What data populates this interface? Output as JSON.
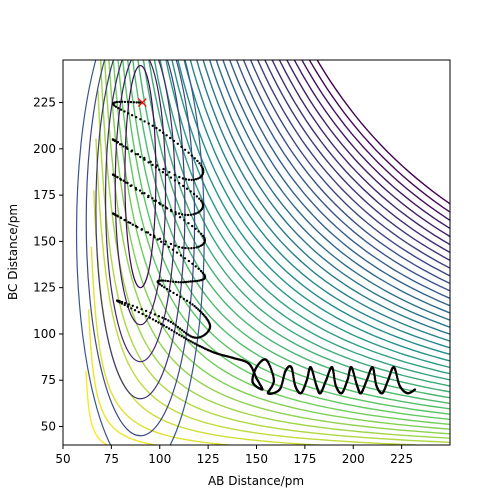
{
  "chart_data": {
    "type": "contour",
    "title": "",
    "xlabel": "AB Distance/pm",
    "ylabel": "BC Distance/pm",
    "xlim": [
      50,
      250
    ],
    "ylim": [
      40,
      248
    ],
    "x_ticks": [
      "50",
      "75",
      "100",
      "125",
      "150",
      "175",
      "200",
      "225"
    ],
    "y_ticks": [
      "50",
      "75",
      "100",
      "125",
      "150",
      "175",
      "200",
      "225"
    ],
    "x_tick_values": [
      50,
      75,
      100,
      125,
      150,
      175,
      200,
      225
    ],
    "y_tick_values": [
      50,
      75,
      100,
      125,
      150,
      175,
      200,
      225
    ],
    "grid": false,
    "legend": "none",
    "colormap": "viridis",
    "colormap_colors": [
      "#440154",
      "#3b528b",
      "#21918c",
      "#5ec962",
      "#fde725"
    ],
    "start_marker": {
      "symbol": "x",
      "color": "#ff0000",
      "x": 91,
      "y": 225
    },
    "trajectory": {
      "color": "#000000",
      "points": [
        [
          91,
          225
        ],
        [
          76,
          224
        ],
        [
          100,
          210
        ],
        [
          122,
          190
        ],
        [
          112,
          184
        ],
        [
          76,
          205
        ],
        [
          98,
          190
        ],
        [
          122,
          171
        ],
        [
          110,
          165
        ],
        [
          76,
          186
        ],
        [
          98,
          172
        ],
        [
          123,
          152
        ],
        [
          110,
          147
        ],
        [
          76,
          165
        ],
        [
          99,
          151
        ],
        [
          123,
          132
        ],
        [
          113,
          128
        ],
        [
          99,
          128
        ],
        [
          118,
          115
        ],
        [
          126,
          104
        ],
        [
          118,
          98
        ],
        [
          103,
          108
        ],
        [
          78,
          118
        ],
        [
          98,
          107
        ],
        [
          116,
          96
        ],
        [
          128,
          90
        ],
        [
          138,
          87
        ],
        [
          146,
          84
        ],
        [
          150,
          76
        ],
        [
          153,
          70
        ],
        [
          148,
          74
        ],
        [
          150,
          82
        ],
        [
          155,
          86
        ],
        [
          159,
          75
        ],
        [
          156,
          68
        ],
        [
          162,
          70
        ],
        [
          165,
          80
        ],
        [
          168,
          82
        ],
        [
          170,
          72
        ],
        [
          173,
          68
        ],
        [
          176,
          75
        ],
        [
          178,
          82
        ],
        [
          181,
          72
        ],
        [
          183,
          68
        ],
        [
          186,
          75
        ],
        [
          189,
          82
        ],
        [
          191,
          72
        ],
        [
          194,
          68
        ],
        [
          197,
          75
        ],
        [
          199,
          82
        ],
        [
          202,
          72
        ],
        [
          204,
          68
        ],
        [
          207,
          75
        ],
        [
          210,
          82
        ],
        [
          212,
          72
        ],
        [
          215,
          68
        ],
        [
          218,
          75
        ],
        [
          221,
          82
        ],
        [
          224,
          72
        ],
        [
          228,
          68
        ],
        [
          232,
          70
        ]
      ]
    }
  }
}
